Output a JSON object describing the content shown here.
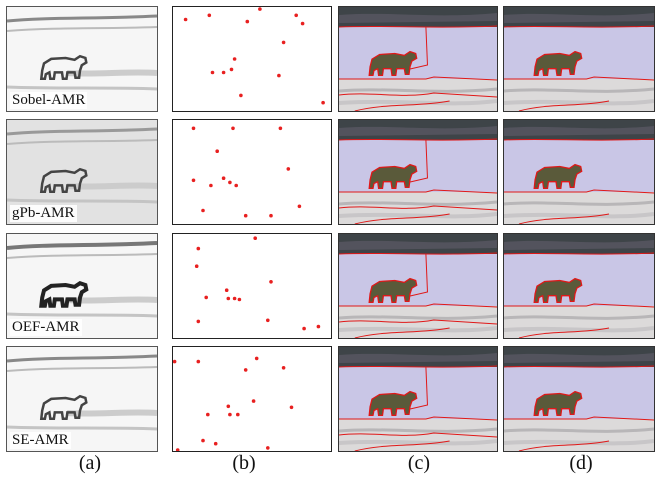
{
  "methods": [
    "Sobel-AMR",
    "gPb-AMR",
    "OEF-AMR",
    "SE-AMR"
  ],
  "columns": [
    "(a)",
    "(b)",
    "(c)",
    "(d)"
  ],
  "colors": {
    "seed": "#e82020",
    "boundary": "#e01818",
    "sky": "#c9c6e6",
    "bear": "#5a5a3a"
  },
  "seeds": [
    [
      [
        0.08,
        0.12
      ],
      [
        0.23,
        0.08
      ],
      [
        0.47,
        0.14
      ],
      [
        0.55,
        0.02
      ],
      [
        0.78,
        0.08
      ],
      [
        0.82,
        0.16
      ],
      [
        0.7,
        0.34
      ],
      [
        0.39,
        0.5
      ],
      [
        0.37,
        0.6
      ],
      [
        0.32,
        0.63
      ],
      [
        0.25,
        0.63
      ],
      [
        0.67,
        0.66
      ],
      [
        0.43,
        0.85
      ],
      [
        0.95,
        0.92
      ]
    ],
    [
      [
        0.13,
        0.08
      ],
      [
        0.38,
        0.08
      ],
      [
        0.68,
        0.08
      ],
      [
        0.28,
        0.3
      ],
      [
        0.73,
        0.47
      ],
      [
        0.13,
        0.58
      ],
      [
        0.32,
        0.56
      ],
      [
        0.36,
        0.6
      ],
      [
        0.24,
        0.63
      ],
      [
        0.4,
        0.63
      ],
      [
        0.8,
        0.83
      ],
      [
        0.19,
        0.87
      ],
      [
        0.46,
        0.92
      ],
      [
        0.62,
        0.92
      ]
    ],
    [
      [
        0.52,
        0.04
      ],
      [
        0.16,
        0.14
      ],
      [
        0.15,
        0.31
      ],
      [
        0.62,
        0.46
      ],
      [
        0.21,
        0.61
      ],
      [
        0.34,
        0.54
      ],
      [
        0.35,
        0.62
      ],
      [
        0.39,
        0.62
      ],
      [
        0.42,
        0.63
      ],
      [
        0.16,
        0.84
      ],
      [
        0.6,
        0.83
      ],
      [
        0.83,
        0.91
      ],
      [
        0.92,
        0.89
      ]
    ],
    [
      [
        0.01,
        0.14
      ],
      [
        0.16,
        0.14
      ],
      [
        0.53,
        0.11
      ],
      [
        0.7,
        0.2
      ],
      [
        0.46,
        0.22
      ],
      [
        0.51,
        0.52
      ],
      [
        0.35,
        0.57
      ],
      [
        0.36,
        0.65
      ],
      [
        0.41,
        0.65
      ],
      [
        0.22,
        0.65
      ],
      [
        0.75,
        0.58
      ],
      [
        0.19,
        0.9
      ],
      [
        0.27,
        0.93
      ],
      [
        0.6,
        0.97
      ],
      [
        0.03,
        0.99
      ]
    ]
  ]
}
